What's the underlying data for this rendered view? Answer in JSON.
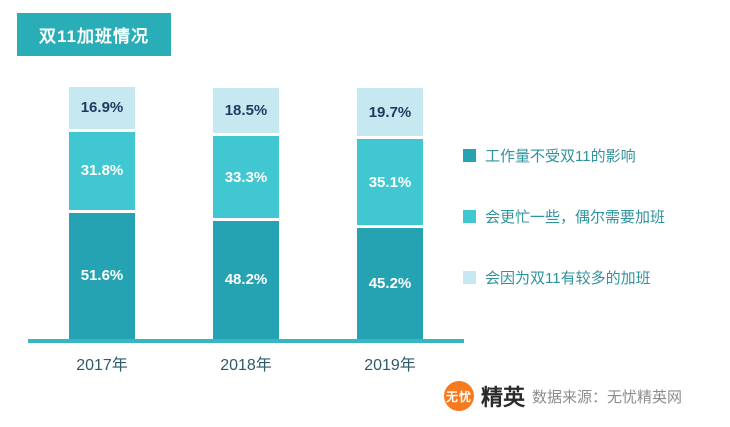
{
  "title": "双11加班情况",
  "chart_data": {
    "type": "bar",
    "stacked": true,
    "title": "双11加班情况",
    "categories": [
      "2017年",
      "2018年",
      "2019年"
    ],
    "series": [
      {
        "name": "工作量不受双11的影响",
        "color": "#25a3b2",
        "label_color": "#ffffff",
        "values": [
          51.6,
          48.2,
          45.2
        ]
      },
      {
        "name": "会更忙一些，偶尔需要加班",
        "color": "#41c7d1",
        "label_color": "#ffffff",
        "values": [
          31.8,
          33.3,
          35.1
        ]
      },
      {
        "name": "会因为双11有较多的加班",
        "color": "#c6e9f1",
        "label_color": "#1e3a5f",
        "values": [
          16.9,
          18.5,
          19.7
        ]
      }
    ],
    "value_suffix": "%",
    "ylim": [
      0,
      100
    ],
    "legend_position": "right",
    "grid": false,
    "axis_color": "#38b6c1"
  },
  "footer": {
    "logo_part1": "无忧",
    "logo_part2": "精英",
    "source": "数据来源：无忧精英网"
  }
}
